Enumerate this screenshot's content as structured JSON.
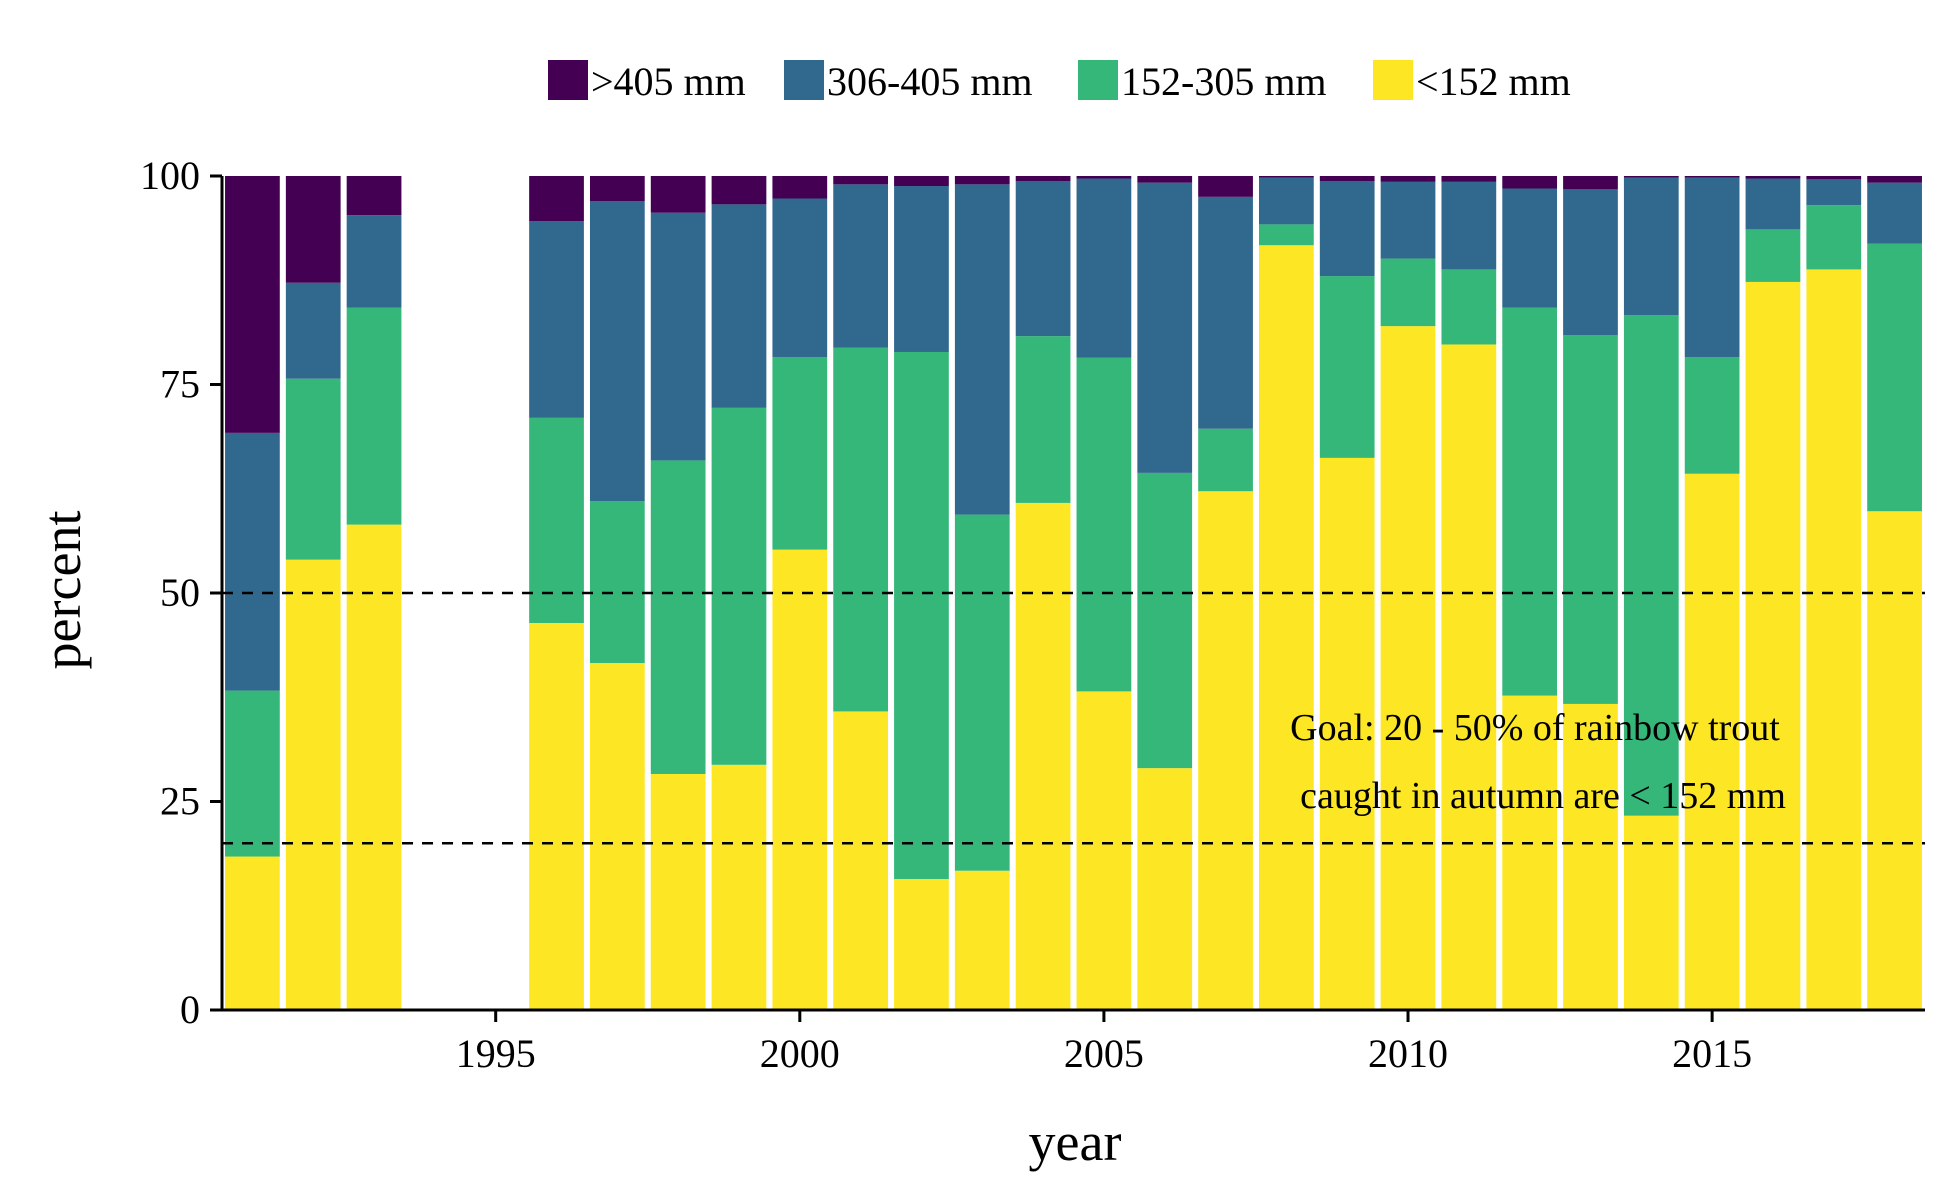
{
  "chart_data": {
    "type": "bar",
    "stacked": true,
    "xlabel": "year",
    "ylabel": "percent",
    "xlim": [
      1990.5,
      2018.5
    ],
    "ylim": [
      0,
      100
    ],
    "x_ticks": [
      1995,
      2000,
      2005,
      2010,
      2015
    ],
    "y_ticks": [
      0,
      25,
      50,
      75,
      100
    ],
    "grid": false,
    "legend_position": "top",
    "reference_lines": [
      20,
      50
    ],
    "annotation": [
      "Goal: 20 - 50% of rainbow trout",
      "caught in autumn are < 152 mm"
    ],
    "years": [
      1991,
      1992,
      1993,
      1996,
      1997,
      1998,
      1999,
      2000,
      2001,
      2002,
      2003,
      2004,
      2005,
      2006,
      2007,
      2008,
      2009,
      2010,
      2011,
      2012,
      2013,
      2014,
      2015,
      2016,
      2017,
      2018
    ],
    "series": [
      {
        "name": ">405 mm",
        "color": "#440154",
        "values": [
          30.8,
          12.8,
          4.7,
          5.4,
          3.0,
          4.4,
          3.4,
          2.7,
          1.0,
          1.2,
          1.0,
          0.6,
          0.3,
          0.8,
          2.5,
          0.2,
          0.6,
          0.7,
          0.7,
          1.5,
          1.6,
          0.2,
          0.2,
          0.3,
          0.4,
          0.8
        ]
      },
      {
        "name": "306-405 mm",
        "color": "#31688e",
        "values": [
          30.9,
          11.5,
          11.1,
          23.6,
          36.0,
          29.7,
          24.4,
          19.0,
          19.6,
          19.9,
          39.6,
          18.6,
          21.5,
          34.8,
          27.8,
          5.6,
          11.4,
          9.2,
          10.5,
          14.3,
          17.5,
          16.5,
          21.5,
          6.1,
          3.1,
          7.3
        ]
      },
      {
        "name": "152-305 mm",
        "color": "#35b779",
        "values": [
          19.9,
          21.7,
          26.0,
          24.6,
          19.4,
          37.6,
          42.8,
          23.1,
          43.6,
          63.2,
          42.7,
          20.0,
          40.0,
          35.4,
          7.5,
          2.5,
          21.8,
          8.1,
          9.0,
          46.5,
          44.2,
          60.0,
          14.0,
          6.3,
          7.7,
          32.1
        ]
      },
      {
        "name": "<152 mm",
        "color": "#fde725",
        "values": [
          18.4,
          54.0,
          58.2,
          46.4,
          41.6,
          28.3,
          29.4,
          55.2,
          35.8,
          15.7,
          16.7,
          60.8,
          38.2,
          29.0,
          62.2,
          91.7,
          66.2,
          82.0,
          79.8,
          37.7,
          36.7,
          23.3,
          64.3,
          87.3,
          88.8,
          59.8
        ]
      }
    ]
  }
}
